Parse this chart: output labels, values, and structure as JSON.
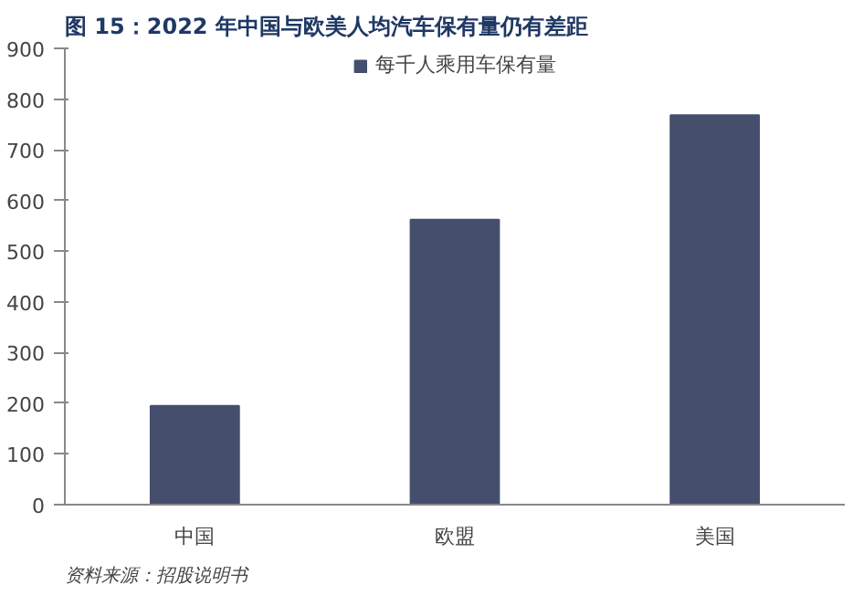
{
  "chart_data": {
    "type": "bar",
    "title": "图 15：2022 年中国与欧美人均汽车保有量仍有差距",
    "categories": [
      "中国",
      "欧盟",
      "美国"
    ],
    "series": [
      {
        "name": "每千人乘用车保有量",
        "color": "#454f6d",
        "values": [
          195,
          562,
          768
        ]
      }
    ],
    "ylim": [
      0,
      900
    ],
    "yticks": [
      0,
      100,
      200,
      300,
      400,
      500,
      600,
      700,
      800,
      900
    ],
    "grid": false,
    "legend": "top",
    "annotations": [
      "资料来源：招股说明书"
    ]
  }
}
